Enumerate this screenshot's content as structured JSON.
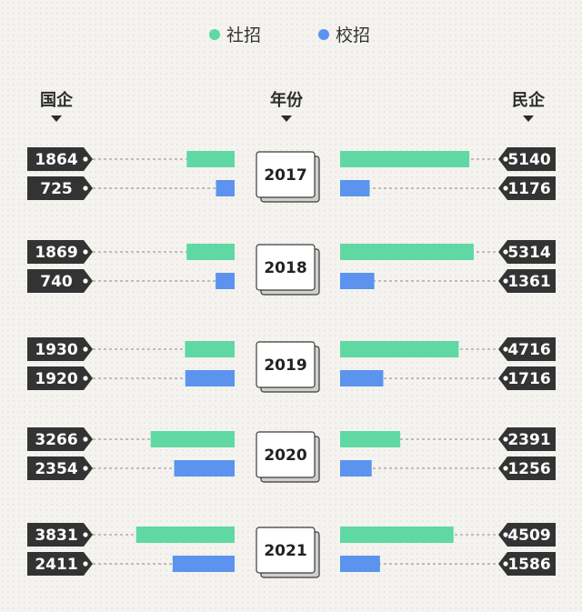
{
  "legend": {
    "social": "社招",
    "campus": "校招"
  },
  "headers": {
    "left": "国企",
    "center": "年份",
    "right": "民企"
  },
  "colors": {
    "social": "#5fd8a4",
    "campus": "#5b93ef",
    "tag": "#333333",
    "background": "#f4f3ef"
  },
  "chart_data": {
    "type": "bar",
    "layout": "back-to-back horizontal bars by year",
    "categories": [
      "2017",
      "2018",
      "2019",
      "2020",
      "2021"
    ],
    "series": [
      {
        "name": "国企 社招",
        "side": "left",
        "kind": "social",
        "values": [
          1864,
          1869,
          1930,
          3266,
          3831
        ]
      },
      {
        "name": "国企 校招",
        "side": "left",
        "kind": "campus",
        "values": [
          725,
          740,
          1920,
          2354,
          2411
        ]
      },
      {
        "name": "民企 社招",
        "side": "right",
        "kind": "social",
        "values": [
          5140,
          5314,
          4716,
          2391,
          4509
        ]
      },
      {
        "name": "民企 校招",
        "side": "right",
        "kind": "campus",
        "values": [
          1176,
          1361,
          1716,
          1256,
          1586
        ]
      }
    ]
  }
}
